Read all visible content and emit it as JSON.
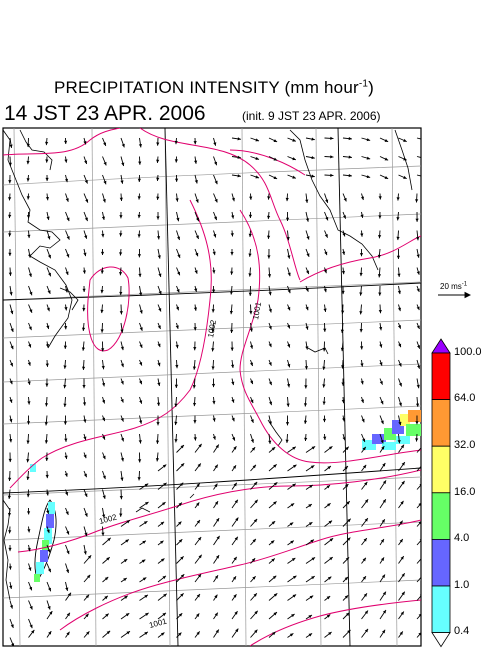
{
  "title": {
    "main_prefix": "PRECIPITATION INTENSITY (mm hour",
    "main_exp": "-1",
    "main_suffix": ")",
    "date": "14 JST 23 APR. 2006",
    "init": "(init. 9 JST 23 APR. 2006)"
  },
  "wind_scale": {
    "label_prefix": "20 ms",
    "label_exp": "-1"
  },
  "legend": {
    "labels": [
      "100.0",
      "64.0",
      "32.0",
      "16.0",
      "4.0",
      "1.0",
      "0.4"
    ],
    "colors": [
      "#9900ff",
      "#ff0000",
      "#ff9933",
      "#ffff66",
      "#66ff66",
      "#6666ff",
      "#66ffff",
      "#ffffff"
    ]
  },
  "contours": {
    "labels": [
      "1002",
      "1001",
      "1002",
      "1001"
    ]
  },
  "precip_colors": {
    "light": "#66ffff",
    "blue": "#6666ff",
    "green": "#66ff66",
    "yellow": "#ffff66",
    "orange": "#ff9933"
  },
  "map_colors": {
    "isobar": "#e0006e",
    "grid": "#999999",
    "coast": "#000000"
  }
}
